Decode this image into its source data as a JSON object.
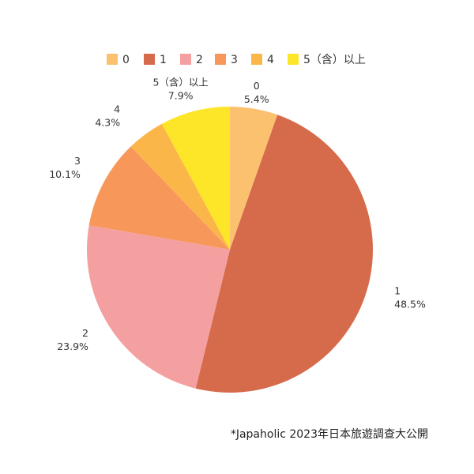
{
  "chart_data": {
    "type": "pie",
    "title": "",
    "categories": [
      "0",
      "1",
      "2",
      "3",
      "4",
      "5（含）以上"
    ],
    "values": [
      5.4,
      48.5,
      23.9,
      10.1,
      4.3,
      7.9
    ],
    "value_labels": [
      "5.4%",
      "48.5%",
      "23.9%",
      "10.1%",
      "4.3%",
      "7.9%"
    ],
    "colors": [
      "#fbc16f",
      "#d66b4c",
      "#f4a0a0",
      "#f7985a",
      "#fbb649",
      "#fde528"
    ],
    "legend_position": "top",
    "start_angle": "12 o'clock",
    "direction": "clockwise"
  },
  "source_note": "*Japaholic 2023年日本旅遊調查大公開"
}
